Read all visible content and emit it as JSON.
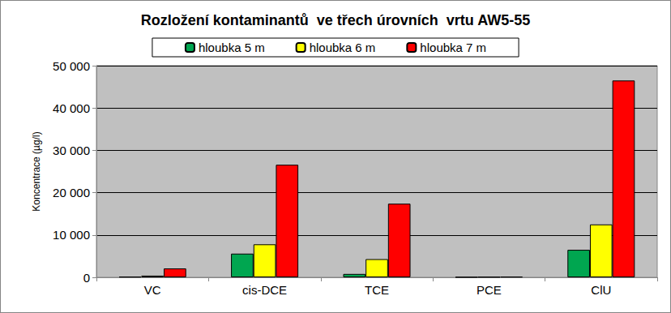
{
  "chart_data": {
    "type": "bar",
    "title": "Rozložení kontaminantů  ve třech úrovních  vrtu AW5-55",
    "y_label": "Koncentrace (µg/l)",
    "categories": [
      "VC",
      "cis-DCE",
      "TCE",
      "PCE",
      "ClU"
    ],
    "series": [
      {
        "name": "hloubka 5 m",
        "color": "#00a650",
        "values": [
          150,
          5600,
          800,
          50,
          6500
        ]
      },
      {
        "name": "hloubka 6 m",
        "color": "#ffff00",
        "values": [
          400,
          7800,
          4300,
          100,
          12500
        ]
      },
      {
        "name": "hloubka 7 m",
        "color": "#ff0000",
        "values": [
          2100,
          26600,
          17400,
          150,
          46500
        ]
      }
    ],
    "ylim": [
      0,
      50000
    ],
    "yticks": [
      0,
      {
        "value": 10000,
        "label": "10 000"
      },
      {
        "value": 20000,
        "label": "20 000"
      },
      {
        "value": 30000,
        "label": "30 000"
      },
      {
        "value": 40000,
        "label": "40 000"
      },
      {
        "value": 50000,
        "label": "50 000"
      }
    ],
    "grid": true,
    "legend": "top"
  }
}
